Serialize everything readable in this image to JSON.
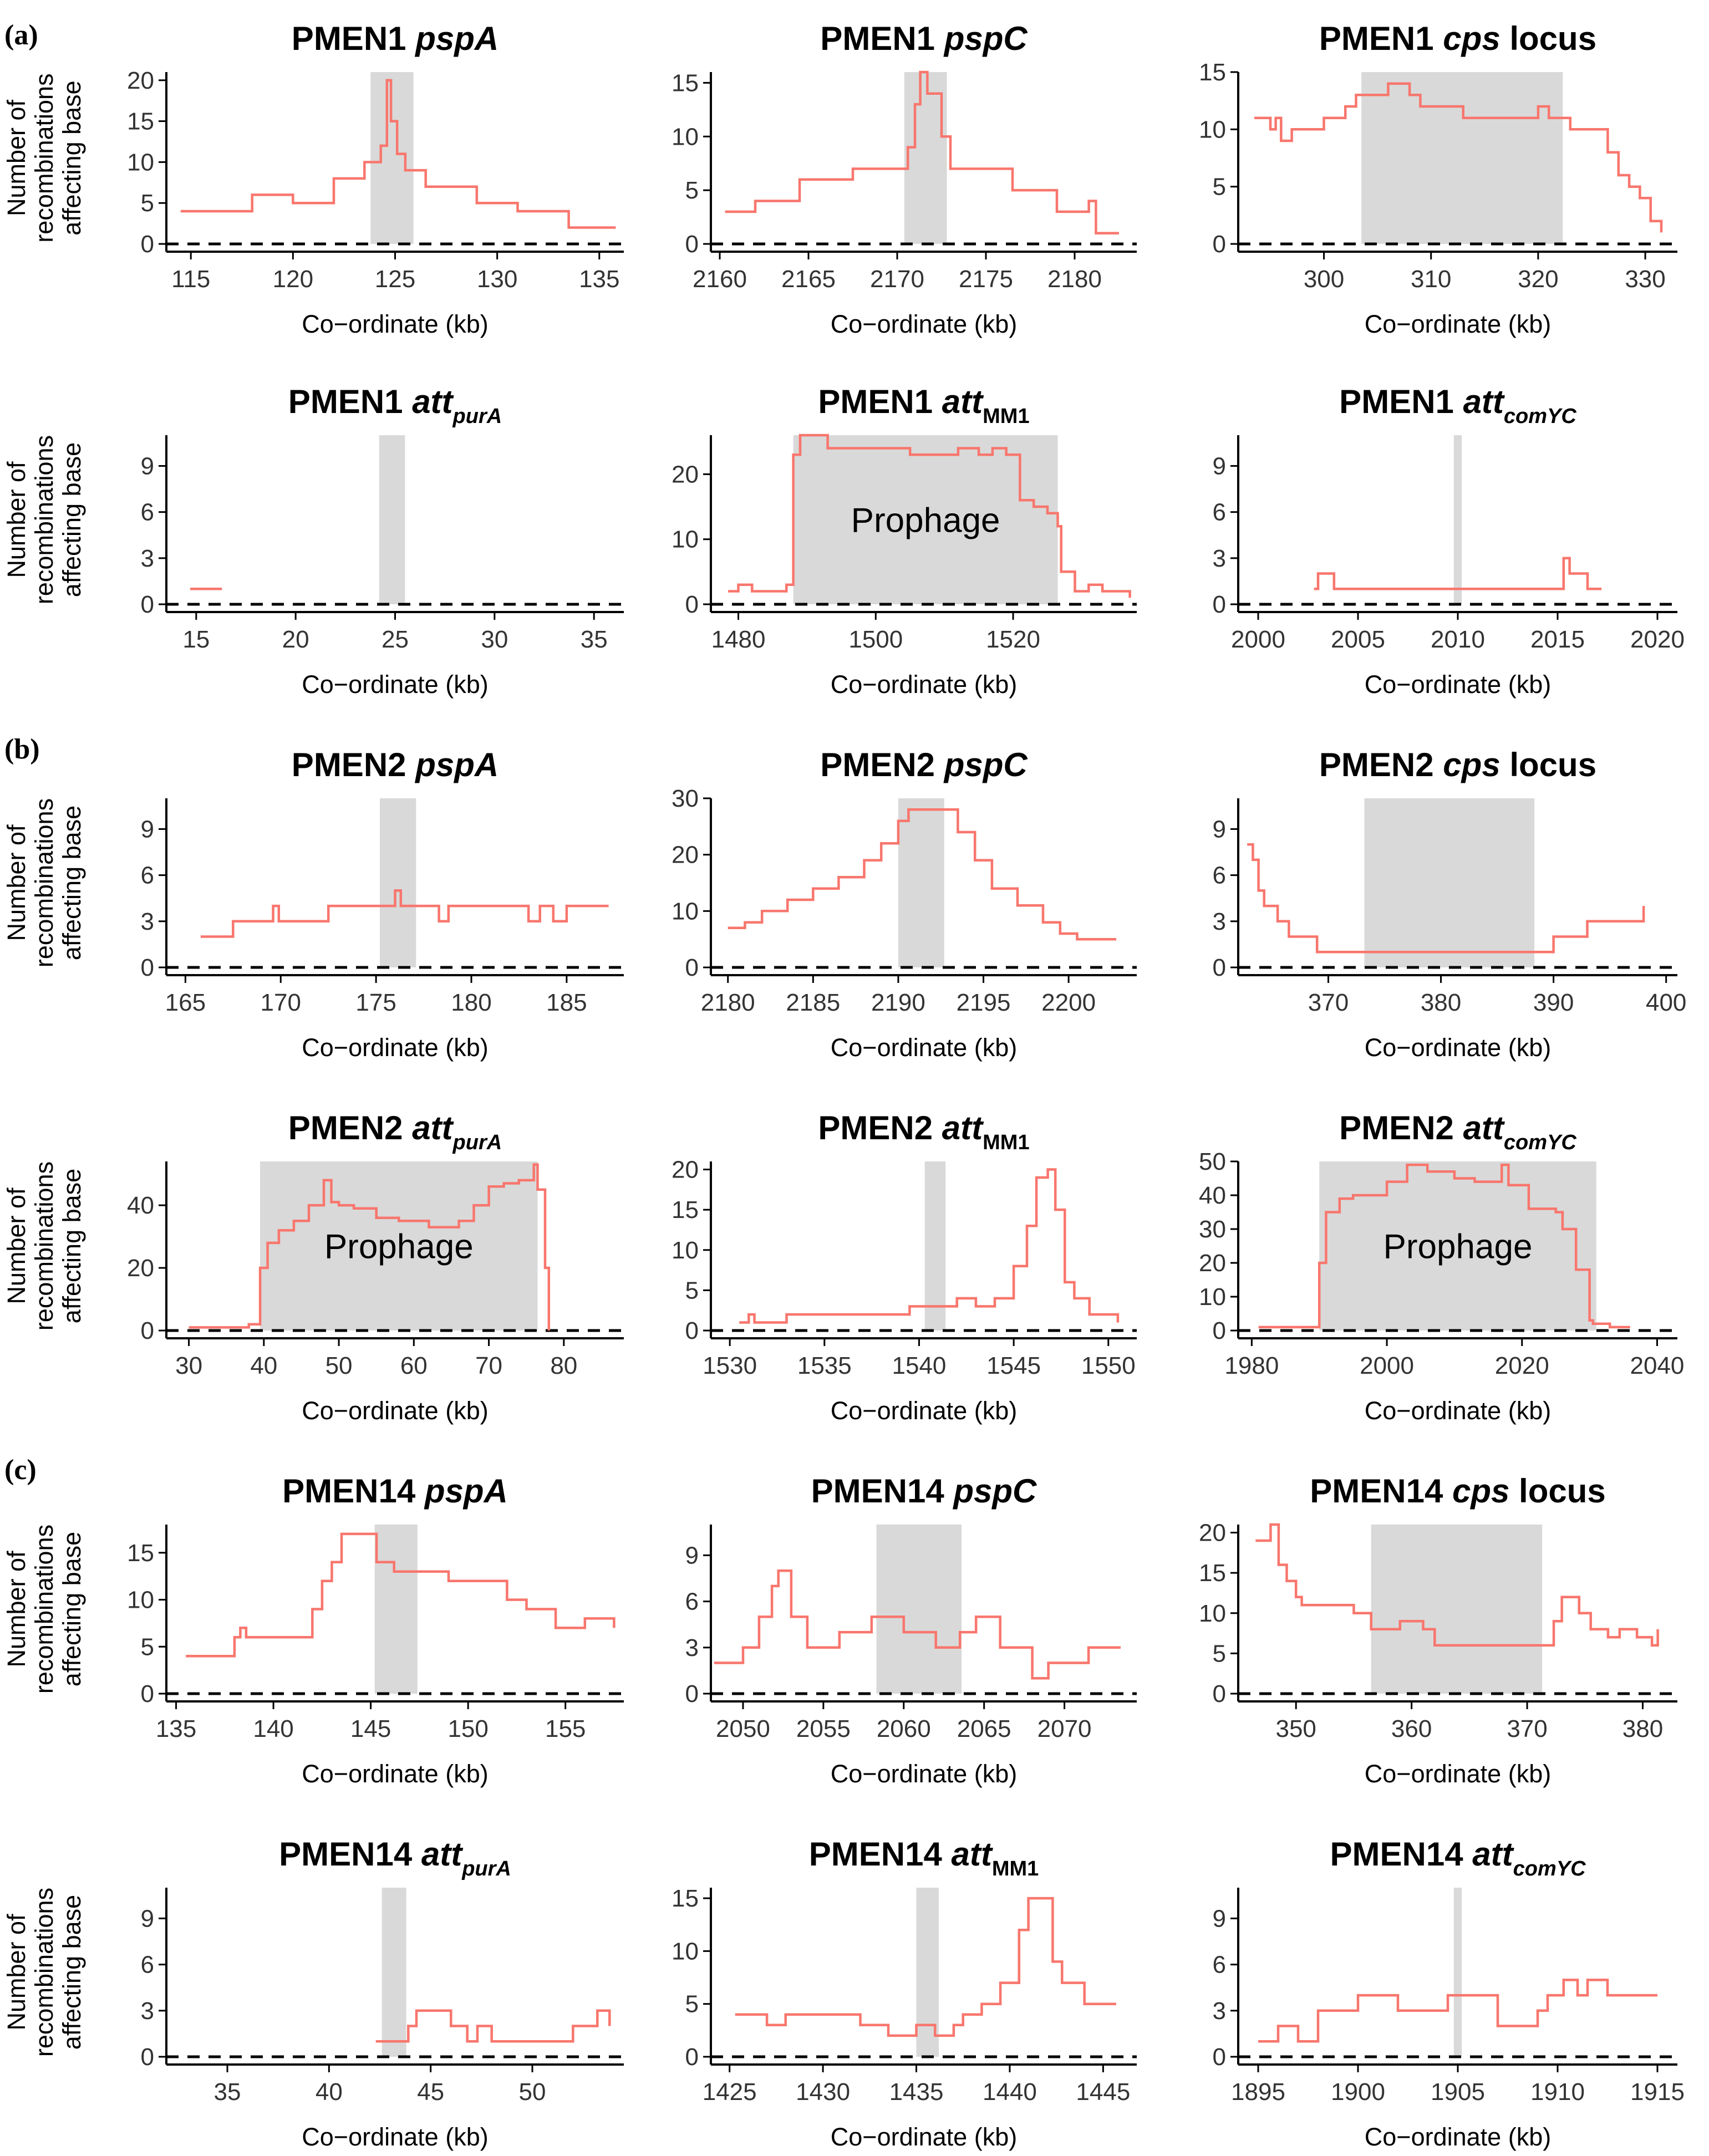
{
  "figure": {
    "panel_letters": [
      "(a)",
      "(b)",
      "(c)"
    ],
    "y_axis_label": [
      "Number of",
      "recombinations",
      "affecting base"
    ],
    "x_axis_label": "Co−ordinate (kb)",
    "colors": {
      "line": "#f8766d",
      "shade": "#d9d9d9",
      "axis": "#000000",
      "baseline": "#000000"
    }
  },
  "chart_data": [
    {
      "type": "line",
      "title": {
        "lineage": "PMEN1",
        "gene": "pspA",
        "tail": "",
        "sub": ""
      },
      "xlim": [
        113.8,
        136.2
      ],
      "ylim": [
        0,
        21
      ],
      "xticks": [
        115,
        120,
        125,
        130,
        135
      ],
      "yticks": [
        0,
        5,
        10,
        15,
        20
      ],
      "shade": [
        123.8,
        125.9
      ],
      "region_label": "",
      "x": [
        114.5,
        118,
        118,
        120,
        120,
        122,
        122,
        123.5,
        123.5,
        124.3,
        124.6,
        124.8,
        125.1,
        125.5,
        126.5,
        129,
        129,
        131,
        131,
        133.5,
        133.5,
        135.8
      ],
      "y": [
        4,
        4,
        6,
        6,
        5,
        5,
        8,
        8,
        10,
        12,
        20,
        15,
        11,
        9,
        7,
        7,
        5,
        5,
        4,
        4,
        2,
        2
      ]
    },
    {
      "type": "line",
      "title": {
        "lineage": "PMEN1",
        "gene": "pspC",
        "tail": "",
        "sub": ""
      },
      "xlim": [
        2159.5,
        2183.5
      ],
      "ylim": [
        0,
        16
      ],
      "xticks": [
        2160,
        2165,
        2170,
        2175,
        2180
      ],
      "yticks": [
        0,
        5,
        10,
        15
      ],
      "shade": [
        2170.4,
        2172.8
      ],
      "region_label": "",
      "x": [
        2160.3,
        2162,
        2162,
        2164.5,
        2164.5,
        2167.5,
        2167.5,
        2170.2,
        2170.6,
        2171,
        2171.3,
        2171.7,
        2172.5,
        2173,
        2175,
        2176.5,
        2176.5,
        2179,
        2179,
        2180.8,
        2181.2,
        2182.5
      ],
      "y": [
        3,
        3,
        4,
        4,
        6,
        6,
        7,
        7,
        9,
        13,
        16,
        14,
        10,
        7,
        7,
        5,
        5,
        3,
        3,
        4,
        1,
        1
      ]
    },
    {
      "type": "line",
      "title": {
        "lineage": "PMEN1",
        "gene": "cps",
        "tail": " locus",
        "sub": ""
      },
      "xlim": [
        292,
        333
      ],
      "ylim": [
        0,
        15
      ],
      "xticks": [
        300,
        310,
        320,
        330
      ],
      "yticks": [
        0,
        5,
        10,
        15
      ],
      "shade": [
        303.5,
        322.3
      ],
      "region_label": "",
      "x": [
        293.5,
        295,
        295.5,
        296,
        297,
        299,
        300,
        302,
        303,
        304,
        306,
        308,
        309,
        312,
        313,
        320,
        321,
        322,
        323,
        325,
        326.5,
        327.5,
        328.5,
        329.5,
        330.5,
        331.5
      ],
      "y": [
        11,
        10,
        11,
        9,
        10,
        10,
        11,
        12,
        13,
        13,
        14,
        13,
        12,
        12,
        11,
        12,
        11,
        11,
        10,
        10,
        8,
        6,
        5,
        4,
        2,
        1
      ]
    },
    {
      "type": "line",
      "title": {
        "lineage": "PMEN1",
        "gene": "att",
        "tail": "",
        "sub": "purA"
      },
      "xlim": [
        13.5,
        36.5
      ],
      "ylim": [
        0,
        11
      ],
      "xticks": [
        15,
        20,
        25,
        30,
        35
      ],
      "yticks": [
        0,
        3,
        6,
        9
      ],
      "shade": [
        24.2,
        25.5
      ],
      "region_label": "",
      "x": [
        14.7,
        16.3
      ],
      "y": [
        1,
        1
      ]
    },
    {
      "type": "line",
      "title": {
        "lineage": "PMEN1",
        "gene": "att",
        "tail": "",
        "sub": "MM1"
      },
      "xlim": [
        1476,
        1538
      ],
      "ylim": [
        0,
        26
      ],
      "xticks": [
        1480,
        1500,
        1520
      ],
      "yticks": [
        0,
        10,
        20
      ],
      "shade": [
        1488,
        1526.5
      ],
      "region_label": "Prophage",
      "x": [
        1478.5,
        1480,
        1482,
        1485,
        1487,
        1488,
        1489,
        1493,
        1501,
        1505,
        1509,
        1512,
        1515,
        1517,
        1519,
        1521,
        1523,
        1525,
        1526.5,
        1527,
        1529,
        1531,
        1533,
        1535,
        1537
      ],
      "y": [
        2,
        3,
        2,
        2,
        3,
        23,
        26,
        24,
        24,
        23,
        23,
        24,
        23,
        24,
        23,
        16,
        15,
        14,
        12,
        5,
        2,
        3,
        2,
        2,
        1
      ]
    },
    {
      "type": "line",
      "title": {
        "lineage": "PMEN1",
        "gene": "att",
        "tail": "",
        "sub": "comYC"
      },
      "xlim": [
        1999,
        2021
      ],
      "ylim": [
        0,
        11
      ],
      "xticks": [
        2000,
        2005,
        2010,
        2015,
        2020
      ],
      "yticks": [
        0,
        3,
        6,
        9
      ],
      "shade": [
        2009.8,
        2010.2
      ],
      "region_label": "",
      "x": [
        2002.8,
        2003,
        2003.6,
        2003.8,
        2015,
        2015.3,
        2015.6,
        2015.9,
        2016.5,
        2017.2
      ],
      "y": [
        1,
        2,
        2,
        1,
        1,
        3,
        2,
        2,
        1,
        1
      ]
    },
    {
      "type": "line",
      "title": {
        "lineage": "PMEN2",
        "gene": "pspA",
        "tail": "",
        "sub": ""
      },
      "xlim": [
        164,
        188
      ],
      "ylim": [
        0,
        11
      ],
      "xticks": [
        165,
        170,
        175,
        180,
        185
      ],
      "yticks": [
        0,
        3,
        6,
        9
      ],
      "shade": [
        175.2,
        177.1
      ],
      "region_label": "",
      "x": [
        165.8,
        167.5,
        167.5,
        169.3,
        169.6,
        169.9,
        172.5,
        172.5,
        175.8,
        176,
        176.3,
        176.7,
        178.3,
        178.8,
        179.6,
        183,
        183.6,
        184.3,
        185,
        187.2
      ],
      "y": [
        2,
        2,
        3,
        3,
        4,
        3,
        3,
        4,
        4,
        5,
        4,
        4,
        3,
        4,
        4,
        3,
        4,
        3,
        4,
        4
      ]
    },
    {
      "type": "line",
      "title": {
        "lineage": "PMEN2",
        "gene": "pspC",
        "tail": "",
        "sub": ""
      },
      "xlim": [
        2179,
        2204
      ],
      "ylim": [
        0,
        30
      ],
      "xticks": [
        2180,
        2185,
        2190,
        2195,
        2200
      ],
      "yticks": [
        0,
        10,
        20,
        30
      ],
      "shade": [
        2190,
        2192.7
      ],
      "region_label": "",
      "x": [
        2180,
        2181,
        2182,
        2183.5,
        2185,
        2186.5,
        2188,
        2189,
        2190,
        2190.6,
        2191,
        2192.5,
        2193.5,
        2194.5,
        2195.5,
        2197,
        2198.5,
        2199.5,
        2200.5,
        2202.8
      ],
      "y": [
        7,
        8,
        10,
        12,
        14,
        16,
        19,
        22,
        26,
        28,
        28,
        28,
        24,
        19,
        14,
        11,
        8,
        6,
        5,
        5
      ]
    },
    {
      "type": "line",
      "title": {
        "lineage": "PMEN2",
        "gene": "cps",
        "tail": " locus",
        "sub": ""
      },
      "xlim": [
        362,
        401
      ],
      "ylim": [
        0,
        11
      ],
      "xticks": [
        370,
        380,
        390,
        400
      ],
      "yticks": [
        0,
        3,
        6,
        9
      ],
      "shade": [
        373.2,
        388.3
      ],
      "region_label": "",
      "x": [
        362.8,
        363.3,
        363.8,
        364.3,
        365.5,
        366.5,
        368,
        369,
        382,
        389.5,
        390,
        393,
        397.8,
        398
      ],
      "y": [
        8,
        7,
        5,
        4,
        3,
        2,
        2,
        1,
        1,
        1,
        2,
        3,
        3,
        4
      ]
    },
    {
      "type": "line",
      "title": {
        "lineage": "PMEN2",
        "gene": "att",
        "tail": "",
        "sub": "purA"
      },
      "xlim": [
        27,
        88
      ],
      "ylim": [
        0,
        54
      ],
      "xticks": [
        30,
        40,
        50,
        60,
        70,
        80
      ],
      "yticks": [
        0,
        20,
        40
      ],
      "shade": [
        39.5,
        76.5
      ],
      "region_label": "Prophage",
      "x": [
        30,
        35,
        38,
        39.5,
        40.5,
        42,
        44,
        46,
        48,
        49,
        50,
        52,
        55,
        58,
        62,
        64,
        66,
        68,
        70,
        72,
        74,
        76,
        76.5,
        77.5,
        78
      ],
      "y": [
        1,
        1,
        2,
        20,
        28,
        32,
        35,
        40,
        48,
        41,
        40,
        39,
        36,
        35,
        33,
        33,
        35,
        40,
        46,
        47,
        48,
        53,
        45,
        20,
        0
      ]
    },
    {
      "type": "line",
      "title": {
        "lineage": "PMEN2",
        "gene": "att",
        "tail": "",
        "sub": "MM1"
      },
      "xlim": [
        1529,
        1551.5
      ],
      "ylim": [
        0,
        21
      ],
      "xticks": [
        1530,
        1535,
        1540,
        1545,
        1550
      ],
      "yticks": [
        0,
        5,
        10,
        15,
        20
      ],
      "shade": [
        1540.3,
        1541.4
      ],
      "region_label": "",
      "x": [
        1530.5,
        1531,
        1531.3,
        1532,
        1533,
        1539,
        1539.5,
        1541,
        1542,
        1543,
        1544,
        1545,
        1545.7,
        1546.2,
        1546.8,
        1547.2,
        1547.7,
        1548.2,
        1549,
        1549.5,
        1550.5
      ],
      "y": [
        1,
        2,
        1,
        1,
        2,
        2,
        3,
        3,
        4,
        3,
        4,
        8,
        13,
        19,
        20,
        15,
        6,
        4,
        2,
        2,
        1
      ]
    },
    {
      "type": "line",
      "title": {
        "lineage": "PMEN2",
        "gene": "att",
        "tail": "",
        "sub": "comYC"
      },
      "xlim": [
        1978,
        2043
      ],
      "ylim": [
        0,
        50
      ],
      "xticks": [
        1980,
        2000,
        2020,
        2040
      ],
      "yticks": [
        0,
        10,
        20,
        30,
        40,
        50
      ],
      "shade": [
        1990,
        2031
      ],
      "region_label": "Prophage",
      "x": [
        1981,
        1988,
        1990,
        1991,
        1993,
        1995,
        1997,
        2000,
        2003,
        2006,
        2010,
        2013,
        2016,
        2017,
        2018,
        2021,
        2024,
        2025,
        2026,
        2028,
        2030,
        2030.5,
        2031,
        2033,
        2036
      ],
      "y": [
        1,
        1,
        20,
        35,
        39,
        40,
        40,
        44,
        49,
        47,
        45,
        44,
        44,
        49,
        43,
        36,
        36,
        35,
        30,
        18,
        3,
        2,
        2,
        1,
        1
      ]
    },
    {
      "type": "line",
      "title": {
        "lineage": "PMEN14",
        "gene": "pspA",
        "tail": "",
        "sub": ""
      },
      "xlim": [
        134.5,
        158
      ],
      "ylim": [
        0,
        18
      ],
      "xticks": [
        135,
        140,
        145,
        150,
        155
      ],
      "yticks": [
        0,
        5,
        10,
        15
      ],
      "shade": [
        145.2,
        147.4
      ],
      "region_label": "",
      "x": [
        135.5,
        137.8,
        138,
        138.3,
        138.6,
        141,
        142,
        142.5,
        143,
        143.5,
        145,
        145.3,
        146.2,
        147.5,
        148.5,
        149,
        150,
        152,
        153,
        154.5,
        156,
        157.5
      ],
      "y": [
        4,
        4,
        6,
        7,
        6,
        6,
        9,
        12,
        14,
        17,
        17,
        14,
        13,
        13,
        13,
        12,
        12,
        10,
        9,
        7,
        8,
        7
      ]
    },
    {
      "type": "line",
      "title": {
        "lineage": "PMEN14",
        "gene": "pspC",
        "tail": "",
        "sub": ""
      },
      "xlim": [
        2048,
        2074.5
      ],
      "ylim": [
        0,
        11
      ],
      "xticks": [
        2050,
        2055,
        2060,
        2065,
        2070
      ],
      "yticks": [
        0,
        3,
        6,
        9
      ],
      "shade": [
        2058.3,
        2063.6
      ],
      "region_label": "",
      "x": [
        2048.2,
        2049.2,
        2050,
        2051,
        2051.8,
        2052.2,
        2053,
        2054,
        2056,
        2058,
        2060,
        2062,
        2063.5,
        2064.5,
        2066,
        2068,
        2069,
        2071.5,
        2073.5
      ],
      "y": [
        2,
        2,
        3,
        5,
        7,
        8,
        5,
        3,
        4,
        5,
        4,
        3,
        4,
        5,
        3,
        1,
        2,
        3,
        3
      ]
    },
    {
      "type": "line",
      "title": {
        "lineage": "PMEN14",
        "gene": "cps",
        "tail": " locus",
        "sub": ""
      },
      "xlim": [
        345,
        383
      ],
      "ylim": [
        0,
        21
      ],
      "xticks": [
        350,
        360,
        370,
        380
      ],
      "yticks": [
        0,
        5,
        10,
        15,
        20
      ],
      "shade": [
        356.5,
        371.3
      ],
      "region_label": "",
      "x": [
        346.5,
        347.5,
        347.8,
        348.5,
        349.2,
        350,
        350.5,
        351,
        355,
        356.5,
        359,
        361,
        362,
        365,
        371.5,
        372.3,
        373,
        374.5,
        375.5,
        377,
        378,
        379.5,
        380.8,
        381.3
      ],
      "y": [
        19,
        19,
        21,
        16,
        14,
        12,
        11,
        11,
        10,
        8,
        9,
        8,
        6,
        6,
        6,
        9,
        12,
        10,
        8,
        7,
        8,
        7,
        6,
        8
      ]
    },
    {
      "type": "line",
      "title": {
        "lineage": "PMEN14",
        "gene": "att",
        "tail": "",
        "sub": "purA"
      },
      "xlim": [
        32,
        54.5
      ],
      "ylim": [
        0,
        11
      ],
      "xticks": [
        35,
        40,
        45,
        50
      ],
      "yticks": [
        0,
        3,
        6,
        9
      ],
      "shade": [
        42.6,
        43.8
      ],
      "region_label": "",
      "x": [
        42.3,
        43.6,
        43.9,
        44.3,
        45.4,
        46,
        46.8,
        47.3,
        48,
        51,
        52,
        53.2,
        53.8
      ],
      "y": [
        1,
        1,
        2,
        3,
        3,
        2,
        1,
        2,
        1,
        1,
        2,
        3,
        2
      ]
    },
    {
      "type": "line",
      "title": {
        "lineage": "PMEN14",
        "gene": "att",
        "tail": "",
        "sub": "MM1"
      },
      "xlim": [
        1424,
        1446.8
      ],
      "ylim": [
        0,
        16
      ],
      "xticks": [
        1425,
        1430,
        1435,
        1440,
        1445
      ],
      "yticks": [
        0,
        5,
        10,
        15
      ],
      "shade": [
        1435,
        1436.2
      ],
      "region_label": "",
      "x": [
        1425.3,
        1427,
        1428,
        1432,
        1433.5,
        1435,
        1436,
        1437,
        1437.5,
        1438.5,
        1439.5,
        1440.5,
        1441,
        1441.5,
        1442.3,
        1442.8,
        1444,
        1445.7
      ],
      "y": [
        4,
        3,
        4,
        3,
        2,
        3,
        2,
        3,
        4,
        5,
        7,
        12,
        15,
        15,
        9,
        7,
        5,
        5
      ]
    },
    {
      "type": "line",
      "title": {
        "lineage": "PMEN14",
        "gene": "att",
        "tail": "",
        "sub": "comYC"
      },
      "xlim": [
        1894,
        1916
      ],
      "ylim": [
        0,
        11
      ],
      "xticks": [
        1895,
        1900,
        1905,
        1910,
        1915
      ],
      "yticks": [
        0,
        3,
        6,
        9
      ],
      "shade": [
        1904.8,
        1905.2
      ],
      "region_label": "",
      "x": [
        1895,
        1896,
        1897,
        1898,
        1900,
        1902,
        1904.5,
        1907,
        1909,
        1909.5,
        1910.3,
        1911,
        1911.5,
        1912.5,
        1915
      ],
      "y": [
        1,
        2,
        1,
        3,
        4,
        3,
        4,
        2,
        3,
        4,
        5,
        4,
        5,
        4,
        4
      ]
    }
  ]
}
